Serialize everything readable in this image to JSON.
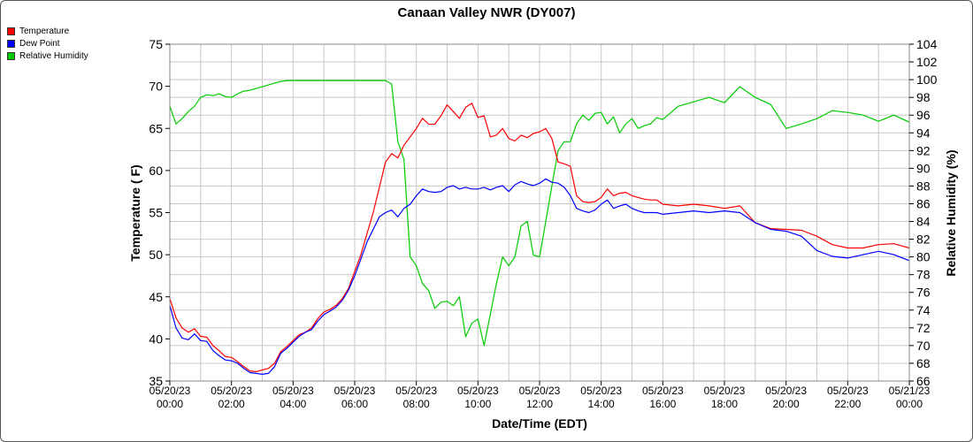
{
  "chart_data": {
    "type": "line",
    "title": "Canaan Valley NWR (DY007)",
    "xlabel": "Date/Time (EDT)",
    "ylabel_left": "Temperature ( F)",
    "ylabel_right": "Relative Humidity (%)",
    "ylim_left": [
      35,
      75
    ],
    "ylim_right": [
      66,
      104
    ],
    "xlim_hours": [
      0,
      24
    ],
    "grid": true,
    "legend_placement": "top-left",
    "x_ticks": [
      {
        "hour": 0,
        "date": "05/20/23",
        "time": "00:00"
      },
      {
        "hour": 2,
        "date": "05/20/23",
        "time": "02:00"
      },
      {
        "hour": 4,
        "date": "05/20/23",
        "time": "04:00"
      },
      {
        "hour": 6,
        "date": "05/20/23",
        "time": "06:00"
      },
      {
        "hour": 8,
        "date": "05/20/23",
        "time": "08:00"
      },
      {
        "hour": 10,
        "date": "05/20/23",
        "time": "10:00"
      },
      {
        "hour": 12,
        "date": "05/20/23",
        "time": "12:00"
      },
      {
        "hour": 14,
        "date": "05/20/23",
        "time": "14:00"
      },
      {
        "hour": 16,
        "date": "05/20/23",
        "time": "16:00"
      },
      {
        "hour": 18,
        "date": "05/20/23",
        "time": "18:00"
      },
      {
        "hour": 20,
        "date": "05/20/23",
        "time": "20:00"
      },
      {
        "hour": 22,
        "date": "05/20/23",
        "time": "22:00"
      },
      {
        "hour": 24,
        "date": "05/21/23",
        "time": "00:00"
      }
    ],
    "y_ticks_left": [
      35,
      40,
      45,
      50,
      55,
      60,
      65,
      70,
      75
    ],
    "y_ticks_right": [
      66,
      68,
      70,
      72,
      74,
      76,
      78,
      80,
      82,
      84,
      86,
      88,
      90,
      92,
      94,
      96,
      98,
      100,
      102,
      104
    ],
    "series": [
      {
        "name": "Temperature",
        "color": "#ff0000",
        "axis": "left",
        "x": [
          0,
          0.2,
          0.4,
          0.6,
          0.8,
          1.0,
          1.2,
          1.4,
          1.6,
          1.8,
          2.0,
          2.2,
          2.4,
          2.6,
          2.8,
          3.0,
          3.2,
          3.4,
          3.6,
          3.8,
          4.0,
          4.2,
          4.4,
          4.6,
          4.8,
          5.0,
          5.2,
          5.4,
          5.6,
          5.8,
          6.0,
          6.2,
          6.4,
          6.6,
          6.8,
          7.0,
          7.2,
          7.4,
          7.6,
          7.8,
          8.0,
          8.2,
          8.4,
          8.6,
          8.8,
          9.0,
          9.2,
          9.4,
          9.6,
          9.8,
          10.0,
          10.2,
          10.4,
          10.6,
          10.8,
          11.0,
          11.2,
          11.4,
          11.6,
          11.8,
          12.0,
          12.2,
          12.4,
          12.6,
          12.8,
          13.0,
          13.2,
          13.4,
          13.6,
          13.8,
          14.0,
          14.2,
          14.4,
          14.6,
          14.8,
          15.0,
          15.2,
          15.4,
          15.6,
          15.8,
          16.0,
          16.5,
          17.0,
          17.5,
          18.0,
          18.5,
          19.0,
          19.5,
          20.0,
          20.5,
          21.0,
          21.5,
          22.0,
          22.5,
          23.0,
          23.5,
          24.0
        ],
        "values": [
          44.8,
          42.5,
          41.3,
          40.8,
          41.2,
          40.3,
          40.2,
          39.2,
          38.6,
          37.9,
          37.8,
          37.3,
          36.7,
          36.2,
          36.1,
          36.3,
          36.5,
          37.1,
          38.5,
          39.1,
          39.8,
          40.5,
          40.8,
          41.3,
          42.4,
          43.2,
          43.5,
          44.0,
          44.8,
          46.0,
          48.0,
          50.0,
          52.5,
          55.0,
          58.0,
          61.0,
          62.0,
          61.5,
          63.0,
          64.0,
          65.0,
          66.2,
          65.5,
          65.5,
          66.5,
          67.8,
          67.0,
          66.2,
          67.5,
          68.0,
          66.3,
          66.5,
          64.0,
          64.2,
          65.0,
          63.8,
          63.5,
          64.2,
          63.9,
          64.4,
          64.6,
          65.0,
          63.8,
          61.0,
          60.8,
          60.5,
          57.0,
          56.3,
          56.2,
          56.3,
          56.8,
          57.8,
          57.0,
          57.3,
          57.4,
          57.0,
          56.8,
          56.6,
          56.5,
          56.5,
          56.0,
          55.8,
          56.0,
          55.8,
          55.5,
          55.8,
          53.8,
          53.1,
          53.0,
          52.9,
          52.2,
          51.2,
          50.8,
          50.8,
          51.2,
          51.3,
          50.8
        ]
      },
      {
        "name": "Dew Point",
        "color": "#0000ff",
        "axis": "left",
        "x": [
          0,
          0.2,
          0.4,
          0.6,
          0.8,
          1.0,
          1.2,
          1.4,
          1.6,
          1.8,
          2.0,
          2.2,
          2.4,
          2.6,
          2.8,
          3.0,
          3.2,
          3.4,
          3.6,
          3.8,
          4.0,
          4.2,
          4.4,
          4.6,
          4.8,
          5.0,
          5.2,
          5.4,
          5.6,
          5.8,
          6.0,
          6.2,
          6.4,
          6.6,
          6.8,
          7.0,
          7.2,
          7.4,
          7.6,
          7.8,
          8.0,
          8.2,
          8.4,
          8.6,
          8.8,
          9.0,
          9.2,
          9.4,
          9.6,
          9.8,
          10.0,
          10.2,
          10.4,
          10.6,
          10.8,
          11.0,
          11.2,
          11.4,
          11.6,
          11.8,
          12.0,
          12.2,
          12.4,
          12.6,
          12.8,
          13.0,
          13.2,
          13.4,
          13.6,
          13.8,
          14.0,
          14.2,
          14.4,
          14.6,
          14.8,
          15.0,
          15.2,
          15.4,
          15.6,
          15.8,
          16.0,
          16.5,
          17.0,
          17.5,
          18.0,
          18.5,
          19.0,
          19.5,
          20.0,
          20.5,
          21.0,
          21.5,
          22.0,
          22.5,
          23.0,
          23.5,
          24.0
        ],
        "values": [
          44.0,
          41.3,
          40.1,
          39.9,
          40.6,
          39.8,
          39.7,
          38.6,
          38.0,
          37.5,
          37.4,
          37.1,
          36.5,
          36.0,
          35.9,
          35.8,
          35.9,
          36.7,
          38.3,
          38.9,
          39.6,
          40.3,
          40.8,
          41.1,
          42.1,
          42.9,
          43.3,
          43.8,
          44.6,
          45.8,
          47.5,
          49.5,
          51.5,
          53.0,
          54.5,
          55.0,
          55.3,
          54.5,
          55.5,
          56.0,
          57.0,
          57.8,
          57.5,
          57.4,
          57.5,
          58.0,
          58.2,
          57.8,
          58.0,
          57.8,
          57.8,
          58.0,
          57.7,
          58.0,
          58.2,
          57.5,
          58.3,
          58.7,
          58.4,
          58.2,
          58.5,
          59.0,
          58.6,
          58.5,
          58.0,
          57.0,
          55.5,
          55.2,
          55.0,
          55.3,
          56.0,
          56.5,
          55.5,
          55.8,
          56.0,
          55.5,
          55.2,
          55.0,
          55.0,
          55.0,
          54.8,
          55.0,
          55.2,
          55.0,
          55.2,
          55.0,
          53.8,
          53.0,
          52.8,
          52.2,
          50.5,
          49.8,
          49.6,
          50.0,
          50.4,
          50.0,
          49.3
        ]
      },
      {
        "name": "Relative Humidity",
        "color": "#00cc00",
        "axis": "right",
        "x": [
          0,
          0.2,
          0.4,
          0.6,
          0.8,
          1.0,
          1.2,
          1.4,
          1.6,
          1.8,
          2.0,
          2.2,
          2.4,
          2.6,
          2.8,
          3.0,
          3.2,
          3.4,
          3.6,
          3.8,
          4.0,
          4.2,
          4.4,
          4.6,
          4.8,
          5.0,
          5.2,
          5.4,
          5.6,
          5.8,
          6.0,
          6.2,
          6.4,
          6.6,
          6.8,
          7.0,
          7.2,
          7.4,
          7.6,
          7.8,
          8.0,
          8.2,
          8.4,
          8.6,
          8.8,
          9.0,
          9.2,
          9.4,
          9.6,
          9.8,
          10.0,
          10.2,
          10.4,
          10.6,
          10.8,
          11.0,
          11.2,
          11.4,
          11.6,
          11.8,
          12.0,
          12.2,
          12.4,
          12.6,
          12.8,
          13.0,
          13.2,
          13.4,
          13.6,
          13.8,
          14.0,
          14.2,
          14.4,
          14.6,
          14.8,
          15.0,
          15.2,
          15.4,
          15.6,
          15.8,
          16.0,
          16.5,
          17.0,
          17.5,
          18.0,
          18.5,
          19.0,
          19.5,
          20.0,
          20.5,
          21.0,
          21.5,
          22.0,
          22.5,
          23.0,
          23.5,
          24.0
        ],
        "values": [
          97.0,
          95.0,
          95.6,
          96.4,
          97.0,
          98.0,
          98.3,
          98.2,
          98.4,
          98.1,
          98.0,
          98.4,
          98.7,
          98.8,
          99.0,
          99.2,
          99.4,
          99.6,
          99.8,
          99.9,
          99.9,
          99.9,
          99.9,
          99.9,
          99.9,
          99.9,
          99.9,
          99.9,
          99.9,
          99.9,
          99.9,
          99.9,
          99.9,
          99.9,
          99.9,
          99.9,
          99.5,
          93.0,
          91.0,
          80.0,
          79.0,
          77.0,
          76.2,
          74.2,
          74.9,
          75.0,
          74.5,
          75.5,
          71.0,
          72.5,
          73.0,
          70.0,
          73.5,
          77.0,
          80.0,
          79.0,
          80.0,
          83.5,
          84.0,
          80.2,
          80.0,
          84.0,
          88.0,
          92.0,
          93.0,
          93.0,
          95.0,
          96.0,
          95.4,
          96.2,
          96.3,
          95.0,
          95.8,
          94.0,
          95.0,
          95.6,
          94.5,
          94.8,
          95.0,
          95.7,
          95.5,
          97.0,
          97.5,
          98.0,
          97.4,
          99.2,
          98.0,
          97.2,
          94.5,
          95.0,
          95.6,
          96.5,
          96.3,
          96.0,
          95.3,
          96.0,
          95.2
        ]
      }
    ]
  }
}
